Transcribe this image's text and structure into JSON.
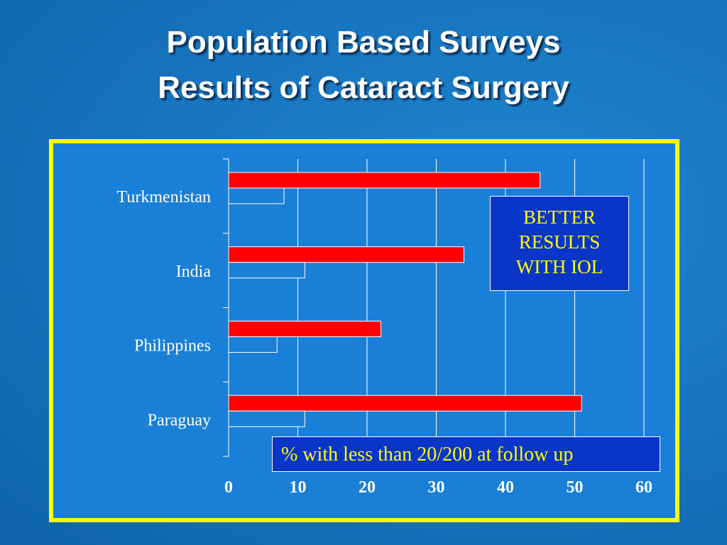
{
  "slide": {
    "title_line1": "Population Based Surveys",
    "title_line2": "Results of Cataract Surgery"
  },
  "callout": {
    "lines": [
      "BETTER",
      "RESULTS",
      "WITH IOL"
    ]
  },
  "legend": {
    "text": "% with less than 20/200 at follow up"
  },
  "colors": {
    "background": "#1773bd",
    "frame_border": "#ffff00",
    "plot_background": "#1a7fd6",
    "bar_red": "#ff0000",
    "bar_outline": "#ffffff",
    "callout_bg": "#0a35c9",
    "callout_text": "#ffff00"
  },
  "chart_data": {
    "type": "bar",
    "orientation": "horizontal",
    "categories": [
      "Turkmenistan",
      "India",
      "Philippines",
      "Paraguay"
    ],
    "series": [
      {
        "color": "#ff0000",
        "values": [
          45,
          34,
          22,
          51
        ]
      },
      {
        "color": "#1a7fd6",
        "values": [
          8,
          11,
          7,
          11
        ]
      }
    ],
    "xlim": [
      0,
      60
    ],
    "xticks": [
      0,
      10,
      20,
      30,
      40,
      50,
      60
    ],
    "grid": "vertical",
    "xlabel": "",
    "ylabel": ""
  }
}
